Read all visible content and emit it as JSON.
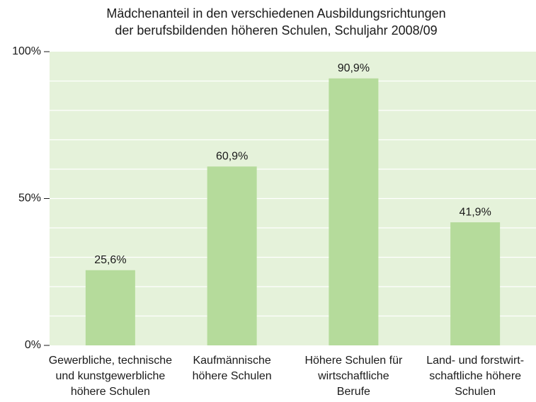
{
  "chart_data": {
    "type": "bar",
    "title": [
      "Mädchenanteil in den verschiedenen Ausbildungsrichtungen",
      "der berufsbildenden höheren Schulen, Schuljahr 2008/09"
    ],
    "categories": [
      [
        "Gewerbliche, technische",
        "und kunstgewerbliche",
        "höhere Schulen"
      ],
      [
        "Kaufmännische",
        "höhere Schulen"
      ],
      [
        "Höhere Schulen für",
        "wirtschaftliche",
        "Berufe"
      ],
      [
        "Land- und forstwirt-",
        "schaftliche höhere",
        "Schulen"
      ]
    ],
    "values": [
      25.6,
      60.9,
      90.9,
      41.9
    ],
    "value_labels": [
      "25,6%",
      "60,9%",
      "90,9%",
      "41,9%"
    ],
    "color": "#b5db9b",
    "background": "#e5f2da",
    "ylim": [
      0,
      100
    ],
    "yticks": [
      {
        "value": 0,
        "label": "0%"
      },
      {
        "value": 50,
        "label": "50%"
      },
      {
        "value": 100,
        "label": "100%"
      }
    ],
    "ygrid": [
      10,
      20,
      30,
      40,
      50,
      60,
      70,
      80,
      90
    ]
  }
}
